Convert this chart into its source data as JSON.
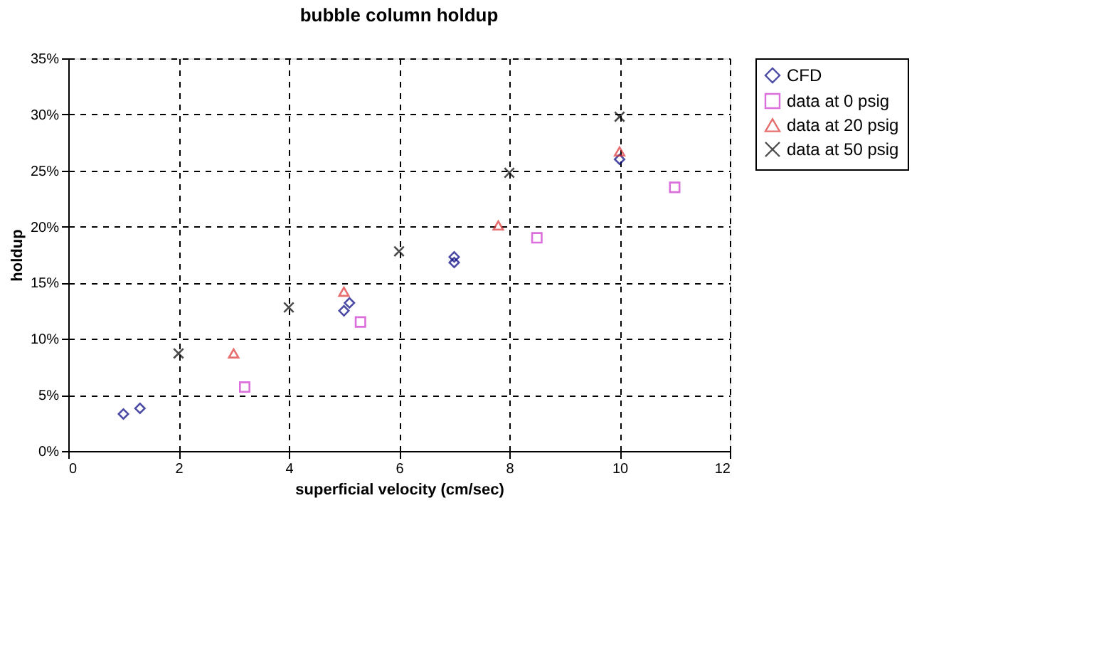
{
  "chart_data": {
    "type": "scatter",
    "title": "bubble column holdup",
    "xlabel": "superficial velocity (cm/sec)",
    "ylabel": "holdup",
    "xlim": [
      0,
      12
    ],
    "xticks": [
      0,
      2,
      4,
      6,
      8,
      10,
      12
    ],
    "ylim": [
      0,
      35
    ],
    "yticks": [
      {
        "value": 0,
        "label": "0%"
      },
      {
        "value": 5,
        "label": "5%"
      },
      {
        "value": 10,
        "label": "10%"
      },
      {
        "value": 15,
        "label": "15%"
      },
      {
        "value": 20,
        "label": "20%"
      },
      {
        "value": 25,
        "label": "25%"
      },
      {
        "value": 30,
        "label": "30%"
      },
      {
        "value": 35,
        "label": "35%"
      }
    ],
    "grid": true,
    "legend": "right",
    "series": [
      {
        "name": "CFD",
        "color": "#000080",
        "marker": "diamond",
        "x": [
          1,
          1.3,
          5.0,
          5.1,
          7,
          7,
          10
        ],
        "values": [
          3.3,
          3.8,
          12.5,
          13.2,
          16.8,
          17.3,
          26.0
        ]
      },
      {
        "name": "data at 0 psig",
        "color": "#cc33cc",
        "marker": "square",
        "x": [
          3.2,
          5.3,
          8.5,
          11
        ],
        "values": [
          5.7,
          11.5,
          19.0,
          23.5
        ]
      },
      {
        "name": "data at 20 psig",
        "color": "#dd3333",
        "marker": "triangle",
        "x": [
          3,
          5,
          7.8,
          10
        ],
        "values": [
          8.7,
          14.2,
          20.1,
          26.7
        ]
      },
      {
        "name": "data at 50 psig",
        "color": "#000000",
        "marker": "cross",
        "x": [
          2,
          4,
          6,
          8,
          10
        ],
        "values": [
          8.7,
          12.8,
          17.8,
          24.8,
          29.8
        ]
      }
    ]
  }
}
